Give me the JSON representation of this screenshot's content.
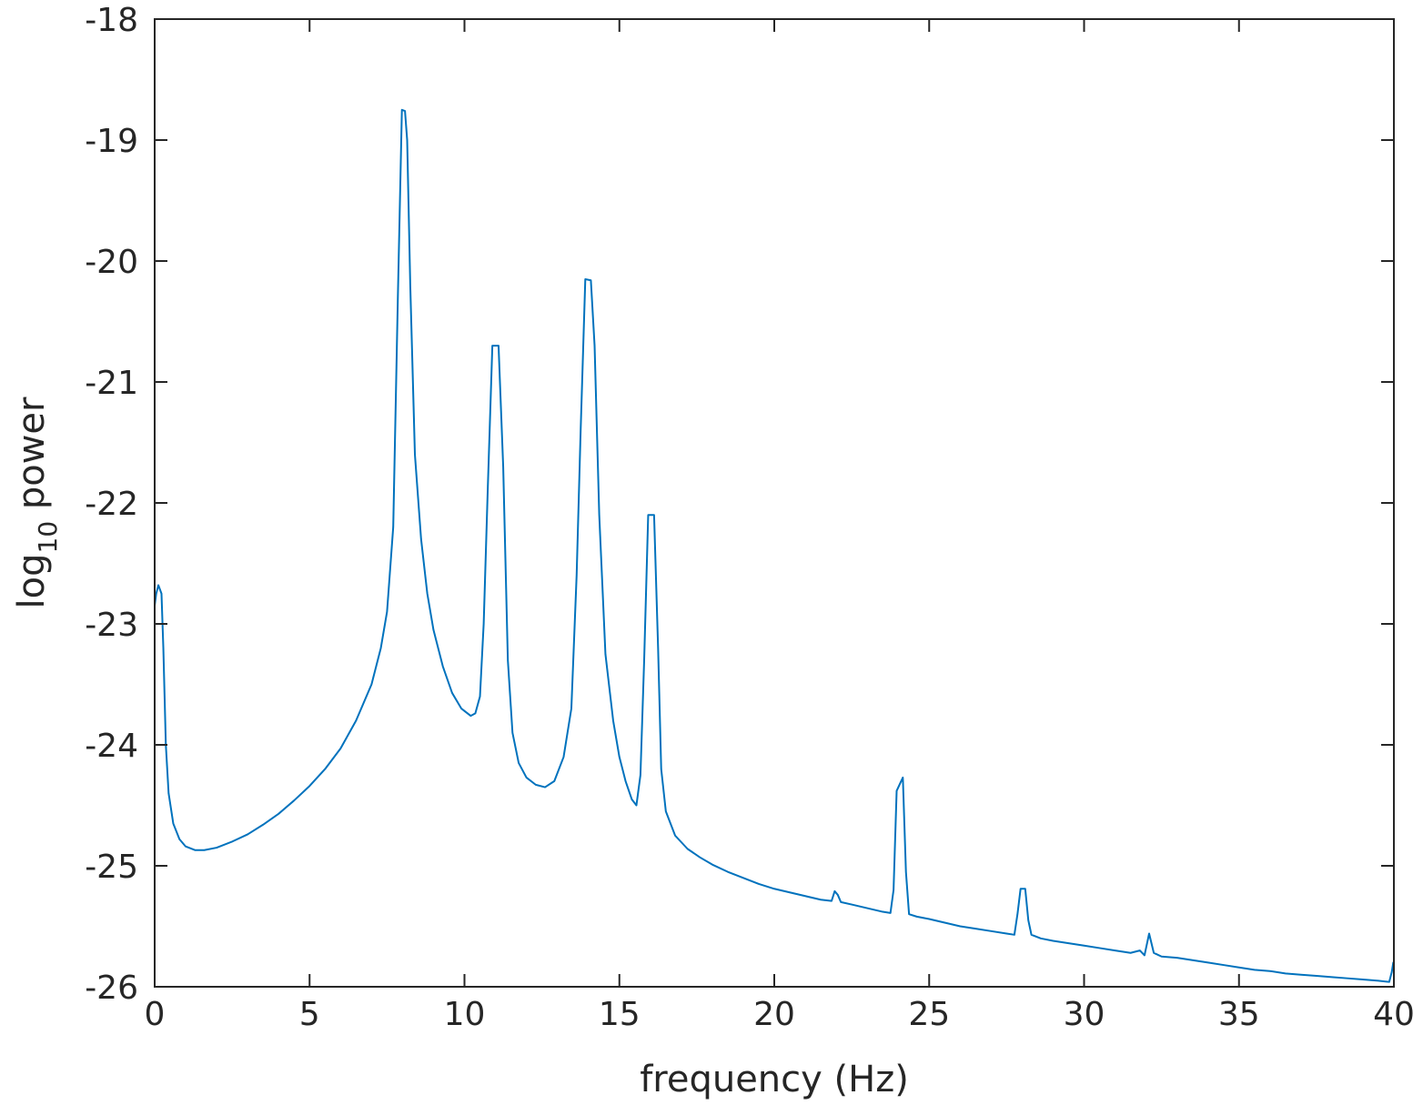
{
  "chart_data": {
    "type": "line",
    "title": "",
    "xlabel": "frequency (Hz)",
    "ylabel": {
      "prefix": "log",
      "subscript": "10",
      "suffix": " power"
    },
    "xlim": [
      0,
      40
    ],
    "ylim": [
      -26,
      -18
    ],
    "x_ticks": [
      0,
      5,
      10,
      15,
      20,
      25,
      30,
      35,
      40
    ],
    "y_ticks": [
      -18,
      -19,
      -20,
      -21,
      -22,
      -23,
      -24,
      -25,
      -26
    ],
    "grid": false,
    "box": true,
    "series": [
      {
        "color": "#0072BD",
        "points": [
          [
            0.0,
            -22.85
          ],
          [
            0.05,
            -22.75
          ],
          [
            0.12,
            -22.68
          ],
          [
            0.22,
            -22.75
          ],
          [
            0.28,
            -23.2
          ],
          [
            0.36,
            -24.0
          ],
          [
            0.45,
            -24.4
          ],
          [
            0.6,
            -24.65
          ],
          [
            0.8,
            -24.78
          ],
          [
            1.0,
            -24.84
          ],
          [
            1.3,
            -24.87
          ],
          [
            1.6,
            -24.87
          ],
          [
            2.0,
            -24.85
          ],
          [
            2.5,
            -24.8
          ],
          [
            3.0,
            -24.74
          ],
          [
            3.5,
            -24.66
          ],
          [
            4.0,
            -24.57
          ],
          [
            4.5,
            -24.46
          ],
          [
            5.0,
            -24.34
          ],
          [
            5.5,
            -24.2
          ],
          [
            6.0,
            -24.03
          ],
          [
            6.5,
            -23.8
          ],
          [
            7.0,
            -23.5
          ],
          [
            7.3,
            -23.2
          ],
          [
            7.5,
            -22.9
          ],
          [
            7.7,
            -22.2
          ],
          [
            7.85,
            -20.3
          ],
          [
            7.98,
            -18.75
          ],
          [
            8.08,
            -18.76
          ],
          [
            8.15,
            -19.0
          ],
          [
            8.25,
            -20.2
          ],
          [
            8.4,
            -21.6
          ],
          [
            8.6,
            -22.3
          ],
          [
            8.8,
            -22.75
          ],
          [
            9.0,
            -23.05
          ],
          [
            9.3,
            -23.35
          ],
          [
            9.6,
            -23.57
          ],
          [
            9.9,
            -23.7
          ],
          [
            10.2,
            -23.76
          ],
          [
            10.35,
            -23.74
          ],
          [
            10.5,
            -23.6
          ],
          [
            10.62,
            -23.0
          ],
          [
            10.75,
            -21.9
          ],
          [
            10.9,
            -20.7
          ],
          [
            11.1,
            -20.7
          ],
          [
            11.25,
            -21.7
          ],
          [
            11.4,
            -23.3
          ],
          [
            11.55,
            -23.9
          ],
          [
            11.75,
            -24.15
          ],
          [
            12.0,
            -24.27
          ],
          [
            12.3,
            -24.33
          ],
          [
            12.6,
            -24.35
          ],
          [
            12.9,
            -24.3
          ],
          [
            13.2,
            -24.1
          ],
          [
            13.45,
            -23.7
          ],
          [
            13.62,
            -22.6
          ],
          [
            13.75,
            -21.4
          ],
          [
            13.9,
            -20.15
          ],
          [
            14.08,
            -20.16
          ],
          [
            14.2,
            -20.7
          ],
          [
            14.35,
            -22.1
          ],
          [
            14.55,
            -23.25
          ],
          [
            14.8,
            -23.8
          ],
          [
            15.0,
            -24.1
          ],
          [
            15.2,
            -24.3
          ],
          [
            15.4,
            -24.45
          ],
          [
            15.55,
            -24.5
          ],
          [
            15.68,
            -24.25
          ],
          [
            15.8,
            -23.3
          ],
          [
            15.93,
            -22.1
          ],
          [
            16.12,
            -22.1
          ],
          [
            16.25,
            -23.2
          ],
          [
            16.35,
            -24.2
          ],
          [
            16.5,
            -24.55
          ],
          [
            16.8,
            -24.75
          ],
          [
            17.2,
            -24.86
          ],
          [
            17.6,
            -24.93
          ],
          [
            18.0,
            -24.99
          ],
          [
            18.5,
            -25.05
          ],
          [
            19.0,
            -25.1
          ],
          [
            19.5,
            -25.15
          ],
          [
            20.0,
            -25.19
          ],
          [
            20.5,
            -25.22
          ],
          [
            21.0,
            -25.25
          ],
          [
            21.5,
            -25.28
          ],
          [
            21.85,
            -25.29
          ],
          [
            21.95,
            -25.21
          ],
          [
            22.05,
            -25.24
          ],
          [
            22.15,
            -25.3
          ],
          [
            22.5,
            -25.32
          ],
          [
            23.0,
            -25.35
          ],
          [
            23.5,
            -25.38
          ],
          [
            23.75,
            -25.39
          ],
          [
            23.85,
            -25.2
          ],
          [
            23.95,
            -24.38
          ],
          [
            24.15,
            -24.27
          ],
          [
            24.25,
            -25.05
          ],
          [
            24.35,
            -25.4
          ],
          [
            24.6,
            -25.42
          ],
          [
            25.0,
            -25.44
          ],
          [
            25.5,
            -25.47
          ],
          [
            26.0,
            -25.5
          ],
          [
            26.5,
            -25.52
          ],
          [
            27.0,
            -25.54
          ],
          [
            27.5,
            -25.56
          ],
          [
            27.75,
            -25.57
          ],
          [
            27.85,
            -25.4
          ],
          [
            27.95,
            -25.19
          ],
          [
            28.1,
            -25.19
          ],
          [
            28.2,
            -25.45
          ],
          [
            28.3,
            -25.57
          ],
          [
            28.6,
            -25.6
          ],
          [
            29.0,
            -25.62
          ],
          [
            29.5,
            -25.64
          ],
          [
            30.0,
            -25.66
          ],
          [
            30.5,
            -25.68
          ],
          [
            31.0,
            -25.7
          ],
          [
            31.5,
            -25.72
          ],
          [
            31.8,
            -25.7
          ],
          [
            31.95,
            -25.74
          ],
          [
            32.1,
            -25.56
          ],
          [
            32.25,
            -25.72
          ],
          [
            32.5,
            -25.75
          ],
          [
            33.0,
            -25.76
          ],
          [
            33.5,
            -25.78
          ],
          [
            34.0,
            -25.8
          ],
          [
            34.5,
            -25.82
          ],
          [
            35.0,
            -25.84
          ],
          [
            35.5,
            -25.86
          ],
          [
            36.0,
            -25.87
          ],
          [
            36.5,
            -25.89
          ],
          [
            37.0,
            -25.9
          ],
          [
            37.5,
            -25.91
          ],
          [
            38.0,
            -25.92
          ],
          [
            38.5,
            -25.93
          ],
          [
            39.0,
            -25.94
          ],
          [
            39.5,
            -25.95
          ],
          [
            39.85,
            -25.96
          ],
          [
            39.93,
            -25.88
          ],
          [
            39.98,
            -25.8
          ],
          [
            40.0,
            -25.85
          ]
        ]
      }
    ]
  }
}
